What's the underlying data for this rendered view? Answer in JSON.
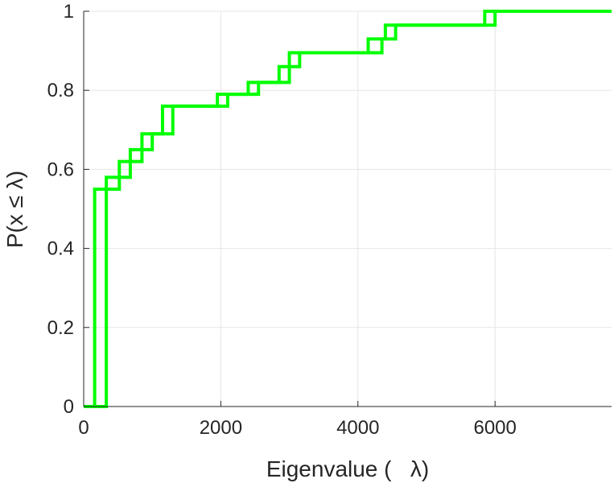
{
  "chart_data": {
    "type": "line",
    "subtype": "empirical-cdf-step",
    "title": "",
    "xlabel": "Eigenvalue (   λ)",
    "ylabel": "P(x ≤ λ)",
    "xlim": [
      0,
      7700
    ],
    "ylim": [
      0,
      1
    ],
    "xticks": [
      0,
      2000,
      4000,
      6000
    ],
    "xtick_labels": [
      "0",
      "2000",
      "4000",
      "6000"
    ],
    "yticks": [
      0,
      0.2,
      0.4,
      0.6,
      0.8,
      1
    ],
    "ytick_labels": [
      "0",
      "0.2",
      "0.4",
      "0.6",
      "0.8",
      "1"
    ],
    "grid": true,
    "series": [
      {
        "color": "#00ff00",
        "x": [
          0,
          160,
          160,
          330,
          330,
          520,
          520,
          680,
          680,
          850,
          850,
          1150,
          1150,
          1950,
          1950,
          2400,
          2400,
          2850,
          2850,
          3000,
          3000,
          4150,
          4150,
          4400,
          4400,
          5850,
          5850,
          7700
        ],
        "y": [
          0,
          0,
          0.55,
          0.55,
          0.58,
          0.58,
          0.62,
          0.62,
          0.65,
          0.65,
          0.69,
          0.69,
          0.76,
          0.76,
          0.79,
          0.79,
          0.82,
          0.82,
          0.86,
          0.86,
          0.895,
          0.895,
          0.93,
          0.93,
          0.965,
          0.965,
          1,
          1
        ]
      },
      {
        "color": "#00ff00",
        "x": [
          0,
          330,
          330,
          520,
          520,
          680,
          680,
          850,
          850,
          1000,
          1000,
          1300,
          1300,
          2100,
          2100,
          2550,
          2550,
          3000,
          3000,
          3150,
          3150,
          4350,
          4350,
          4550,
          4550,
          6000,
          6000,
          7700
        ],
        "y": [
          0,
          0,
          0.55,
          0.55,
          0.58,
          0.58,
          0.62,
          0.62,
          0.65,
          0.65,
          0.69,
          0.69,
          0.76,
          0.76,
          0.79,
          0.79,
          0.82,
          0.82,
          0.86,
          0.86,
          0.895,
          0.895,
          0.93,
          0.93,
          0.965,
          0.965,
          1,
          1
        ]
      }
    ]
  }
}
